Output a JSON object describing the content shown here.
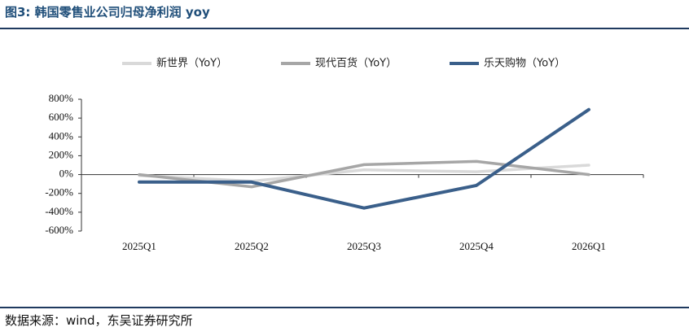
{
  "title": "图3:  韩国零售业公司归母净利润 yoy",
  "source": "数据来源：wind，东吴证券研究所",
  "chart_data": {
    "type": "line",
    "title": "",
    "xlabel": "",
    "ylabel": "",
    "categories": [
      "2025Q1",
      "2025Q2",
      "2025Q3",
      "2025Q4",
      "2026Q1"
    ],
    "ylim": [
      -600,
      800
    ],
    "yticks": [
      800,
      600,
      400,
      200,
      0,
      -200,
      -400,
      -600
    ],
    "ytick_labels": [
      "800%",
      "600%",
      "400%",
      "200%",
      "0%",
      "-200%",
      "-400%",
      "-600%"
    ],
    "legend_position": "top",
    "grid": false,
    "series": [
      {
        "name": "新世界（YoY）",
        "color": "#d9d9d9",
        "values": [
          -10,
          -70,
          50,
          30,
          100
        ]
      },
      {
        "name": "现代百货（YoY）",
        "color": "#a6a6a6",
        "values": [
          0,
          -130,
          105,
          140,
          0
        ]
      },
      {
        "name": "乐天购物（YoY）",
        "color": "#3a5f8a",
        "values": [
          -80,
          -80,
          -355,
          -115,
          690
        ]
      }
    ]
  }
}
